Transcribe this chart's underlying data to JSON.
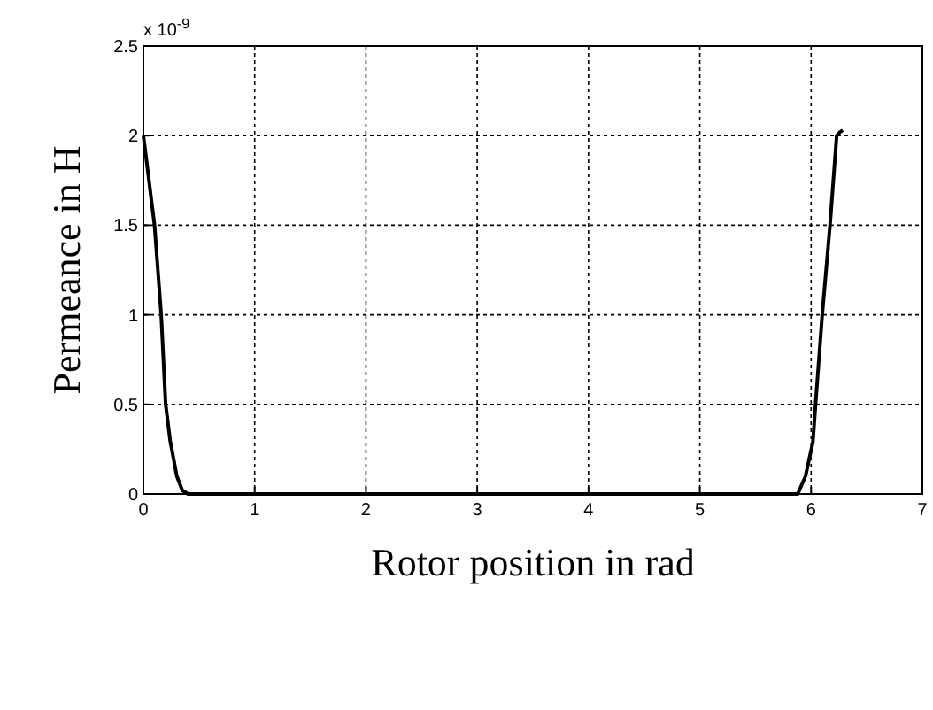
{
  "chart_data": {
    "type": "line",
    "xlabel": "Rotor position in rad",
    "ylabel": "Permeance in H",
    "annotations": [
      "x 10$^{-9}$"
    ],
    "x": [
      0,
      0.03,
      0.1,
      0.16,
      0.2,
      0.24,
      0.3,
      0.35,
      0.4,
      5.88,
      5.95,
      6.016,
      6.04,
      6.1,
      6.17,
      6.23,
      6.26,
      6.285
    ],
    "series": [
      {
        "color": "#000000",
        "values": [
          2,
          1.85,
          1.5,
          1,
          0.5,
          0.3,
          0.1,
          0.02,
          0,
          0,
          0.1,
          0.29,
          0.5,
          1,
          1.5,
          2,
          2.02,
          2.03
        ]
      }
    ],
    "xlim": [
      0,
      7
    ],
    "xticks": [
      0,
      1,
      2,
      3,
      4,
      5,
      6,
      7
    ],
    "ylim": [
      0,
      2.5
    ],
    "yticks": [
      0,
      0.5,
      1,
      1.5,
      2,
      2.5
    ],
    "grid": true,
    "marker": "none",
    "line_style": "solid"
  }
}
